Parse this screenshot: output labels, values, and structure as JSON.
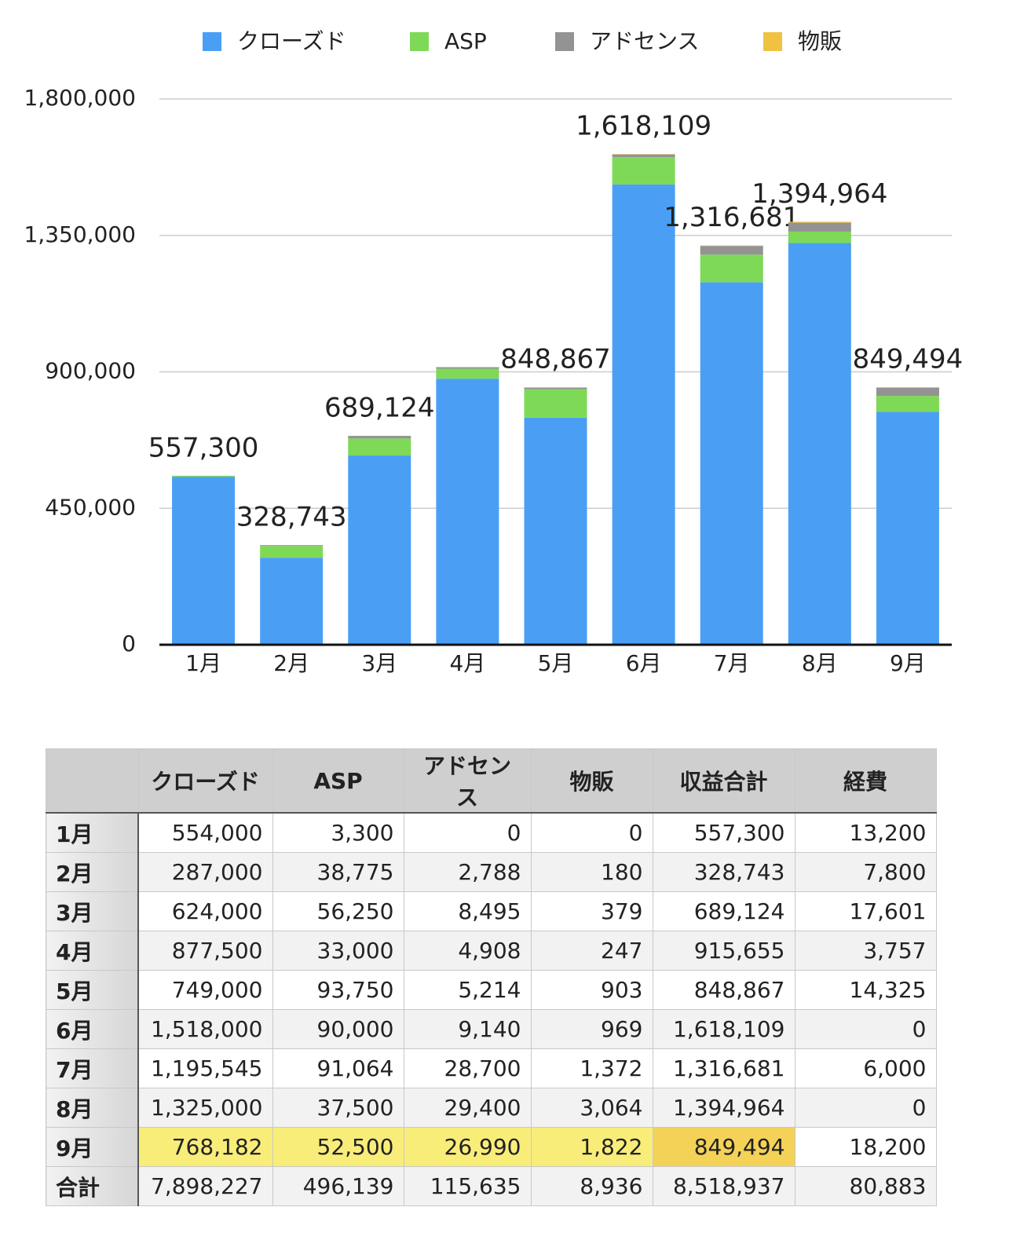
{
  "chart_data": {
    "type": "stacked_bar",
    "categories": [
      "1月",
      "2月",
      "3月",
      "4月",
      "5月",
      "6月",
      "7月",
      "8月",
      "9月"
    ],
    "series": [
      {
        "name": "クローズド",
        "color": "#4a9ff5",
        "values": [
          554000,
          287000,
          624000,
          877500,
          749000,
          1518000,
          1195545,
          1325000,
          768182
        ]
      },
      {
        "name": "ASP",
        "color": "#7ed957",
        "values": [
          3300,
          38775,
          56250,
          33000,
          93750,
          90000,
          91064,
          37500,
          52500
        ]
      },
      {
        "name": "アドセンス",
        "color": "#939393",
        "values": [
          0,
          2788,
          8495,
          4908,
          5214,
          9140,
          28700,
          29400,
          26990
        ]
      },
      {
        "name": "物販",
        "color": "#f0c242",
        "values": [
          0,
          180,
          379,
          247,
          903,
          969,
          1372,
          3064,
          1822
        ]
      }
    ],
    "totals": [
      557300,
      328743,
      689124,
      null,
      848867,
      1618109,
      1316681,
      1394964,
      849494
    ],
    "total_labels": [
      "557,300",
      "328,743",
      "689,124",
      null,
      "848,867",
      "1,618,109",
      "1,316,681",
      "1,394,964",
      "849,494"
    ],
    "ylim": [
      0,
      1800000
    ],
    "yticks": [
      0,
      {
        "value": 450000,
        "label": "450,000"
      },
      {
        "value": 900000,
        "label": "900,000"
      },
      {
        "value": 1350000,
        "label": "1,350,000"
      },
      {
        "value": 1800000,
        "label": "1,800,000"
      }
    ],
    "grid": true,
    "legend": "top"
  },
  "table": {
    "header": [
      "クローズド",
      "ASP",
      "アドセンス",
      "物販",
      "収益合計",
      "経費"
    ],
    "rows": [
      {
        "label": "1月",
        "cells": [
          "554,000",
          "3,300",
          "0",
          "0",
          "557,300",
          "13,200"
        ]
      },
      {
        "label": "2月",
        "cells": [
          "287,000",
          "38,775",
          "2,788",
          "180",
          "328,743",
          "7,800"
        ]
      },
      {
        "label": "3月",
        "cells": [
          "624,000",
          "56,250",
          "8,495",
          "379",
          "689,124",
          "17,601"
        ]
      },
      {
        "label": "4月",
        "cells": [
          "877,500",
          "33,000",
          "4,908",
          "247",
          "915,655",
          "3,757"
        ]
      },
      {
        "label": "5月",
        "cells": [
          "749,000",
          "93,750",
          "5,214",
          "903",
          "848,867",
          "14,325"
        ]
      },
      {
        "label": "6月",
        "cells": [
          "1,518,000",
          "90,000",
          "9,140",
          "969",
          "1,618,109",
          "0"
        ]
      },
      {
        "label": "7月",
        "cells": [
          "1,195,545",
          "91,064",
          "28,700",
          "1,372",
          "1,316,681",
          "6,000"
        ]
      },
      {
        "label": "8月",
        "cells": [
          "1,325,000",
          "37,500",
          "29,400",
          "3,064",
          "1,394,964",
          "0"
        ]
      },
      {
        "label": "9月",
        "cells": [
          "768,182",
          "52,500",
          "26,990",
          "1,822",
          "849,494",
          "18,200"
        ]
      },
      {
        "label": "合計",
        "cells": [
          "7,898,227",
          "496,139",
          "115,635",
          "8,936",
          "8,518,937",
          "80,883"
        ]
      }
    ]
  }
}
